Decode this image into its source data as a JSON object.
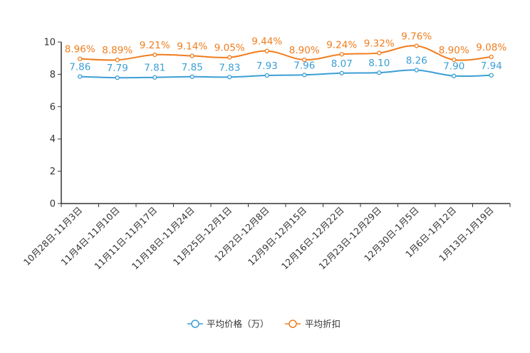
{
  "chart_data": {
    "type": "line",
    "title": "",
    "xlabel": "",
    "ylabel": "",
    "ylim": [
      0,
      10
    ],
    "yticks": [
      0,
      2,
      4,
      6,
      8,
      10
    ],
    "grid": false,
    "legend_position": "bottom-center",
    "categories": [
      "10月28日-11月3日",
      "11月4日-11月10日",
      "11月11日-11月17日",
      "11月18日-11月24日",
      "11月25日-12月1日",
      "12月2日-12月8日",
      "12月9日-12月15日",
      "12月16日-12月22日",
      "12月23日-12月29日",
      "12月30日-1月5日",
      "1月6日-1月12日",
      "1月13日-1月19日"
    ],
    "series": [
      {
        "name": "平均价格（万）",
        "color": "#3b9fd6",
        "values": [
          7.86,
          7.79,
          7.81,
          7.85,
          7.83,
          7.93,
          7.96,
          8.07,
          8.1,
          8.26,
          7.9,
          7.94
        ],
        "labels": [
          "7.86",
          "7.79",
          "7.81",
          "7.85",
          "7.83",
          "7.93",
          "7.96",
          "8.07",
          "8.10",
          "8.26",
          "7.90",
          "7.94"
        ]
      },
      {
        "name": "平均折扣",
        "color": "#f07d1e",
        "values": [
          8.96,
          8.89,
          9.21,
          9.14,
          9.05,
          9.44,
          8.9,
          9.24,
          9.32,
          9.76,
          8.9,
          9.08
        ],
        "labels": [
          "8.96%",
          "8.89%",
          "9.21%",
          "9.14%",
          "9.05%",
          "9.44%",
          "8.90%",
          "9.24%",
          "9.32%",
          "9.76%",
          "8.90%",
          "9.08%"
        ]
      }
    ]
  }
}
